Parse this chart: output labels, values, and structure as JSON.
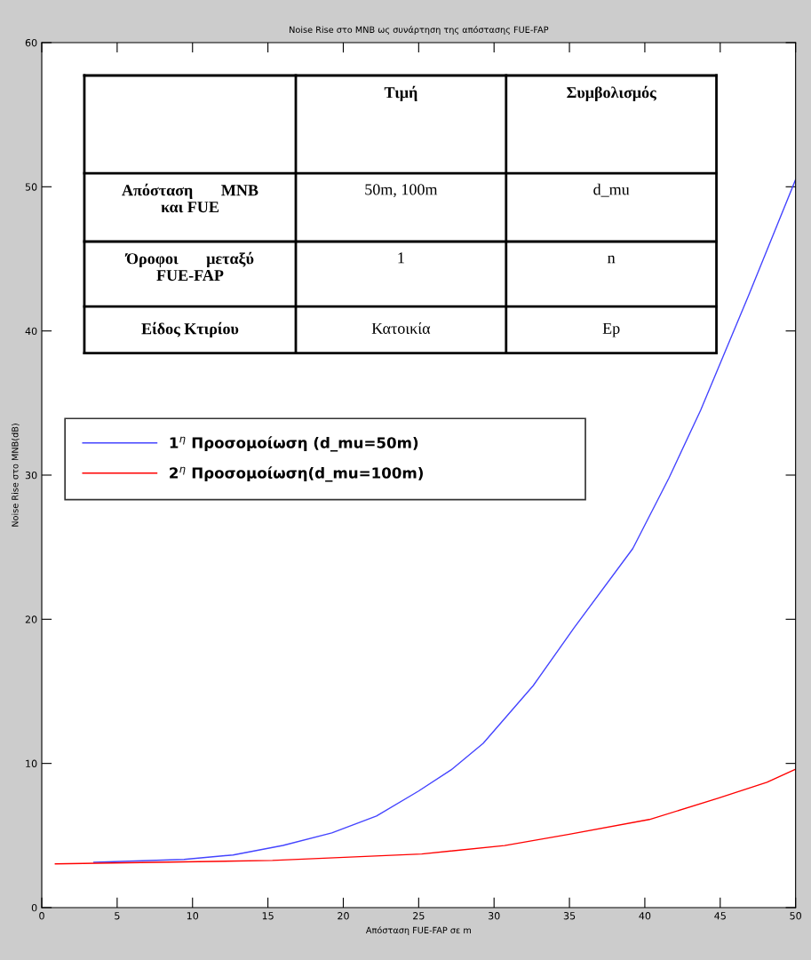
{
  "chart_data": {
    "type": "line",
    "title": "Noise Rise στο MNB ως συνάρτηση της απόστασης FUE-FAP",
    "xlabel": "Απόσταση FUE-FAP σε m",
    "ylabel": "Noise Rise στο MNB(dB)",
    "xlim": [
      0,
      50
    ],
    "ylim": [
      0,
      60
    ],
    "xticks": [
      0,
      5,
      10,
      15,
      20,
      25,
      30,
      35,
      40,
      45,
      50
    ],
    "yticks": [
      0,
      10,
      20,
      30,
      40,
      50,
      60
    ],
    "grid": false,
    "legend": "top left",
    "series": [
      {
        "name": "1$^{η}$ Προσομοίωση (d_mu=50m)",
        "color": "#4444ff",
        "x": [
          3.46,
          9.43,
          12.69,
          16.0,
          19.24,
          22.2,
          24.97,
          27.15,
          29.28,
          32.6,
          35.3,
          39.2,
          41.6,
          43.7,
          46.9,
          50.0
        ],
        "values": [
          3.14,
          3.34,
          3.65,
          4.31,
          5.18,
          6.35,
          8.07,
          9.55,
          11.4,
          15.4,
          19.4,
          24.9,
          29.8,
          34.5,
          42.5,
          50.5
        ]
      },
      {
        "name": "2$^{η}$ Προσομοίωση(d_mu=100m)",
        "color": "#ff0000",
        "x": [
          0.9,
          15.3,
          25.2,
          30.7,
          35.0,
          40.3,
          44.85,
          48.1,
          50.0
        ],
        "values": [
          3.03,
          3.27,
          3.72,
          4.3,
          5.09,
          6.11,
          7.58,
          8.69,
          9.6
        ]
      }
    ],
    "annotations": [
      "Τιμή",
      "Συμβολισμός",
      "Απόσταση       MNB\nκαι FUE",
      "50m, 100m",
      "d_mu",
      "Όροφοι       μεταξύ\nFUE-FAP",
      "1",
      "n",
      "Είδος Κτιρίου",
      "Κατοικία",
      "Ep"
    ]
  }
}
